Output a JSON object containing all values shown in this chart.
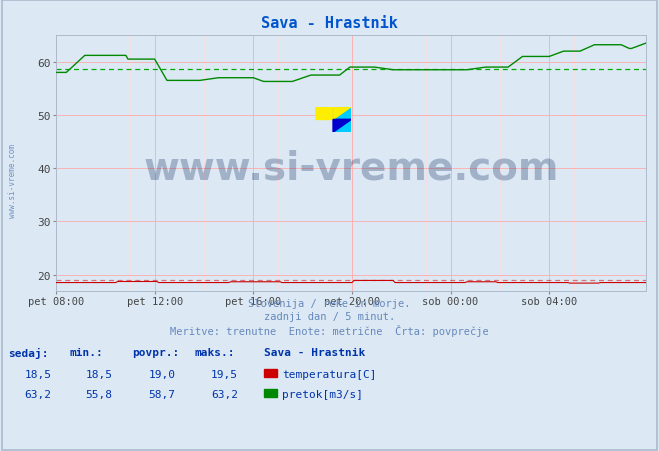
{
  "title": "Sava - Hrastnik",
  "title_color": "#0055cc",
  "bg_color": "#dce9f5",
  "plot_bg_color": "#dce9f5",
  "grid_color_major": "#ffaaaa",
  "grid_color_minor": "#ffdddd",
  "x_tick_labels": [
    "pet 08:00",
    "pet 12:00",
    "pet 16:00",
    "pet 20:00",
    "sob 00:00",
    "sob 04:00"
  ],
  "x_tick_positions": [
    0,
    48,
    96,
    144,
    192,
    240
  ],
  "y_ticks": [
    20,
    30,
    40,
    50,
    60
  ],
  "ylim": [
    17.0,
    65.0
  ],
  "xlim": [
    0,
    287
  ],
  "temp_color": "#cc0000",
  "flow_color": "#008800",
  "avg_flow_color": "#00aa00",
  "avg_temp_color": "#cc2222",
  "temp_avg": 19.0,
  "flow_avg": 58.7,
  "watermark_text": "www.si-vreme.com",
  "watermark_color": "#1a3060",
  "watermark_alpha": 0.3,
  "watermark_fontsize": 28,
  "subtitle1": "Slovenija / reke in morje.",
  "subtitle2": "zadnji dan / 5 minut.",
  "subtitle3": "Meritve: trenutne  Enote: metrične  Črta: povprečje",
  "subtitle_color": "#6688bb",
  "table_header": [
    "sedaj:",
    "min.:",
    "povpr.:",
    "maks.:"
  ],
  "table_bold_col": "Sava - Hrastnik",
  "temp_row": [
    18.5,
    18.5,
    19.0,
    19.5
  ],
  "flow_row": [
    63.2,
    55.8,
    58.7,
    63.2
  ],
  "temp_label": "temperatura[C]",
  "flow_label": "pretok[m3/s]",
  "side_text": "www.si-vreme.com",
  "side_text_color": "#6688bb",
  "col_color": "#0033aa",
  "logo_yellow": "#ffee00",
  "logo_cyan": "#00ccff",
  "logo_blue": "#0000cc",
  "logo_green": "#00aa44",
  "border_color": "#aabbcc"
}
